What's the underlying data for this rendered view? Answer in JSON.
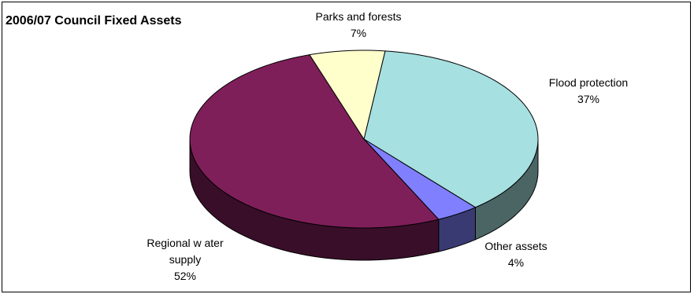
{
  "chart_data": {
    "type": "pie",
    "title": "2006/07 Council Fixed Assets",
    "slices": [
      {
        "label": "Flood protection",
        "percent_label": "37%",
        "value": 37,
        "color": "#a6e0e0"
      },
      {
        "label": "Other assets",
        "percent_label": "4%",
        "value": 4,
        "color": "#8080ff"
      },
      {
        "label": "Regional w ater supply",
        "label_line1": "Regional w ater",
        "label_line2": "supply",
        "percent_label": "52%",
        "value": 52,
        "color": "#7f1f5a"
      },
      {
        "label": "Parks and forests",
        "percent_label": "7%",
        "value": 7,
        "color": "#ffffcc"
      }
    ],
    "legend": "none",
    "grid": false
  }
}
